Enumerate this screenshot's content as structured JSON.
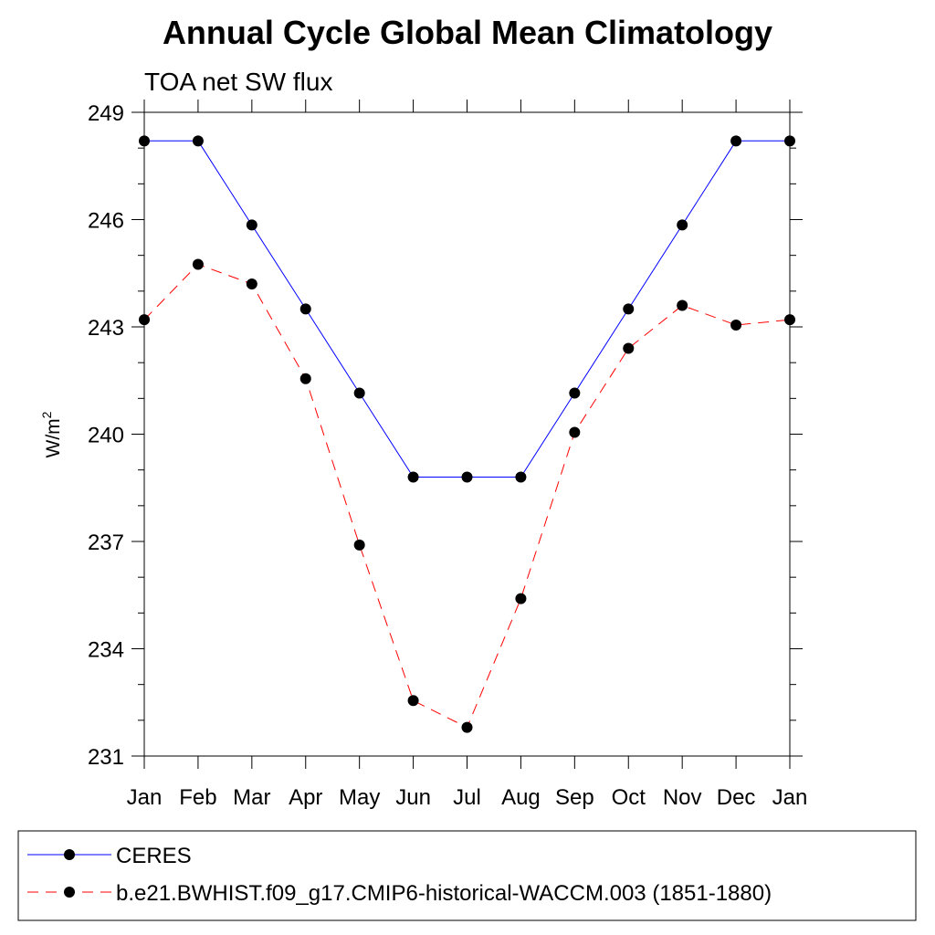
{
  "chart_data": {
    "type": "line",
    "title": "Annual Cycle Global Mean Climatology",
    "subtitle": "TOA net SW flux",
    "ylabel_base": "W/m",
    "ylabel_sup": "2",
    "categories": [
      "Jan",
      "Feb",
      "Mar",
      "Apr",
      "May",
      "Jun",
      "Jul",
      "Aug",
      "Sep",
      "Oct",
      "Nov",
      "Dec",
      "Jan"
    ],
    "ylim": [
      231,
      249
    ],
    "yticks": [
      231,
      234,
      237,
      240,
      243,
      246,
      249
    ],
    "yticks_minor": [
      232,
      233,
      235,
      236,
      238,
      239,
      241,
      242,
      244,
      245,
      247,
      248
    ],
    "legend_position": "bottom",
    "series": [
      {
        "name": "CERES",
        "color": "#0000ff",
        "dash": "solid",
        "values": [
          248.2,
          248.2,
          245.85,
          243.5,
          241.15,
          238.8,
          238.8,
          238.8,
          241.15,
          243.5,
          245.85,
          248.2,
          248.2
        ]
      },
      {
        "name": "b.e21.BWHIST.f09_g17.CMIP6-historical-WACCM.003 (1851-1880)",
        "color": "#ff0000",
        "dash": "dashed",
        "values": [
          243.2,
          244.75,
          244.2,
          241.55,
          236.9,
          232.55,
          231.8,
          235.4,
          240.05,
          242.4,
          243.6,
          243.05,
          243.2
        ]
      }
    ]
  }
}
